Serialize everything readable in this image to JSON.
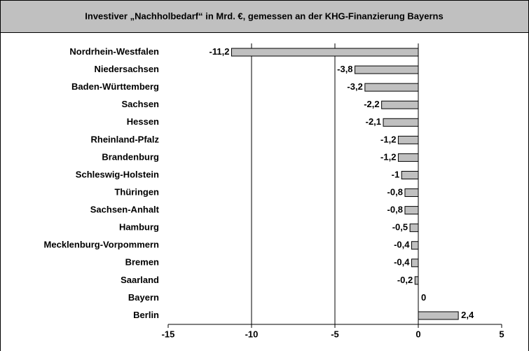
{
  "chart_data": {
    "type": "bar",
    "orientation": "horizontal",
    "title": "Investiver „Nachholbedarf“ in Mrd. €, gemessen an der KHG-Finanzierung Bayerns",
    "categories": [
      "Nordrhein-Westfalen",
      "Niedersachsen",
      "Baden-Württemberg",
      "Sachsen",
      "Hessen",
      "Rheinland-Pfalz",
      "Brandenburg",
      "Schleswig-Holstein",
      "Thüringen",
      "Sachsen-Anhalt",
      "Hamburg",
      "Mecklenburg-Vorpommern",
      "Bremen",
      "Saarland",
      "Bayern",
      "Berlin"
    ],
    "values": [
      -11.2,
      -3.8,
      -3.2,
      -2.2,
      -2.1,
      -1.2,
      -1.2,
      -1,
      -0.8,
      -0.8,
      -0.5,
      -0.4,
      -0.4,
      -0.2,
      0,
      2.4
    ],
    "value_labels": [
      "-11,2",
      "-3,8",
      "-3,2",
      "-2,2",
      "-2,1",
      "-1,2",
      "-1,2",
      "-1",
      "-0,8",
      "-0,8",
      "-0,5",
      "-0,4",
      "-0,4",
      "-0,2",
      "0",
      "2,4"
    ],
    "color": "#c0c0c0",
    "xlim": [
      -15,
      5
    ],
    "xticks": [
      -15,
      -10,
      -5,
      0,
      5
    ],
    "grid": true
  }
}
